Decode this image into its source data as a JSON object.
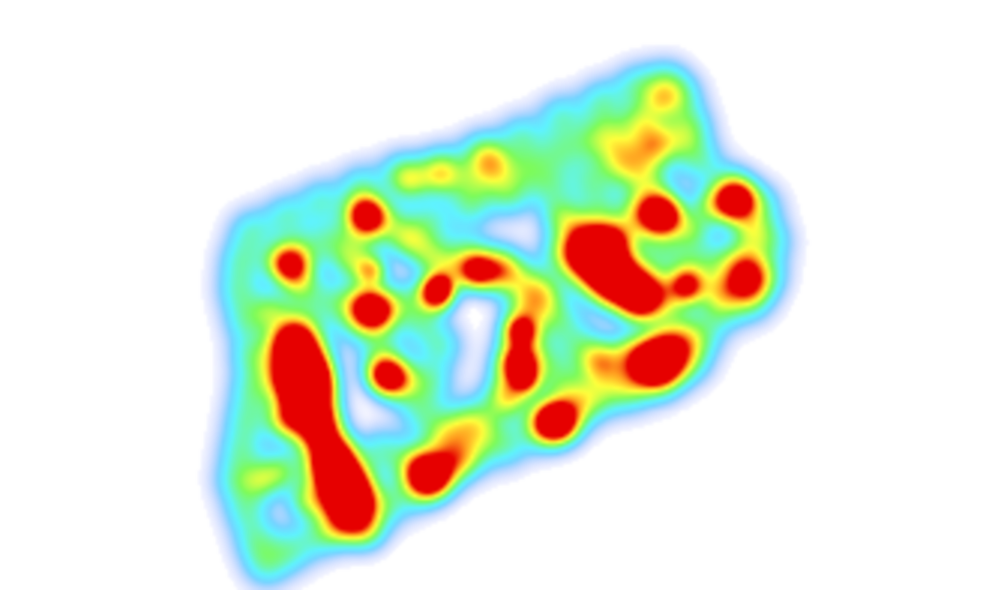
{
  "heatmap": {
    "background": "#ffffff",
    "gradient": [
      "#9a9cff",
      "#5ff3ff",
      "#7dfb5a",
      "#ffff3c",
      "#ff9a1e",
      "#e60000"
    ],
    "peak_color": "#d80000"
  }
}
